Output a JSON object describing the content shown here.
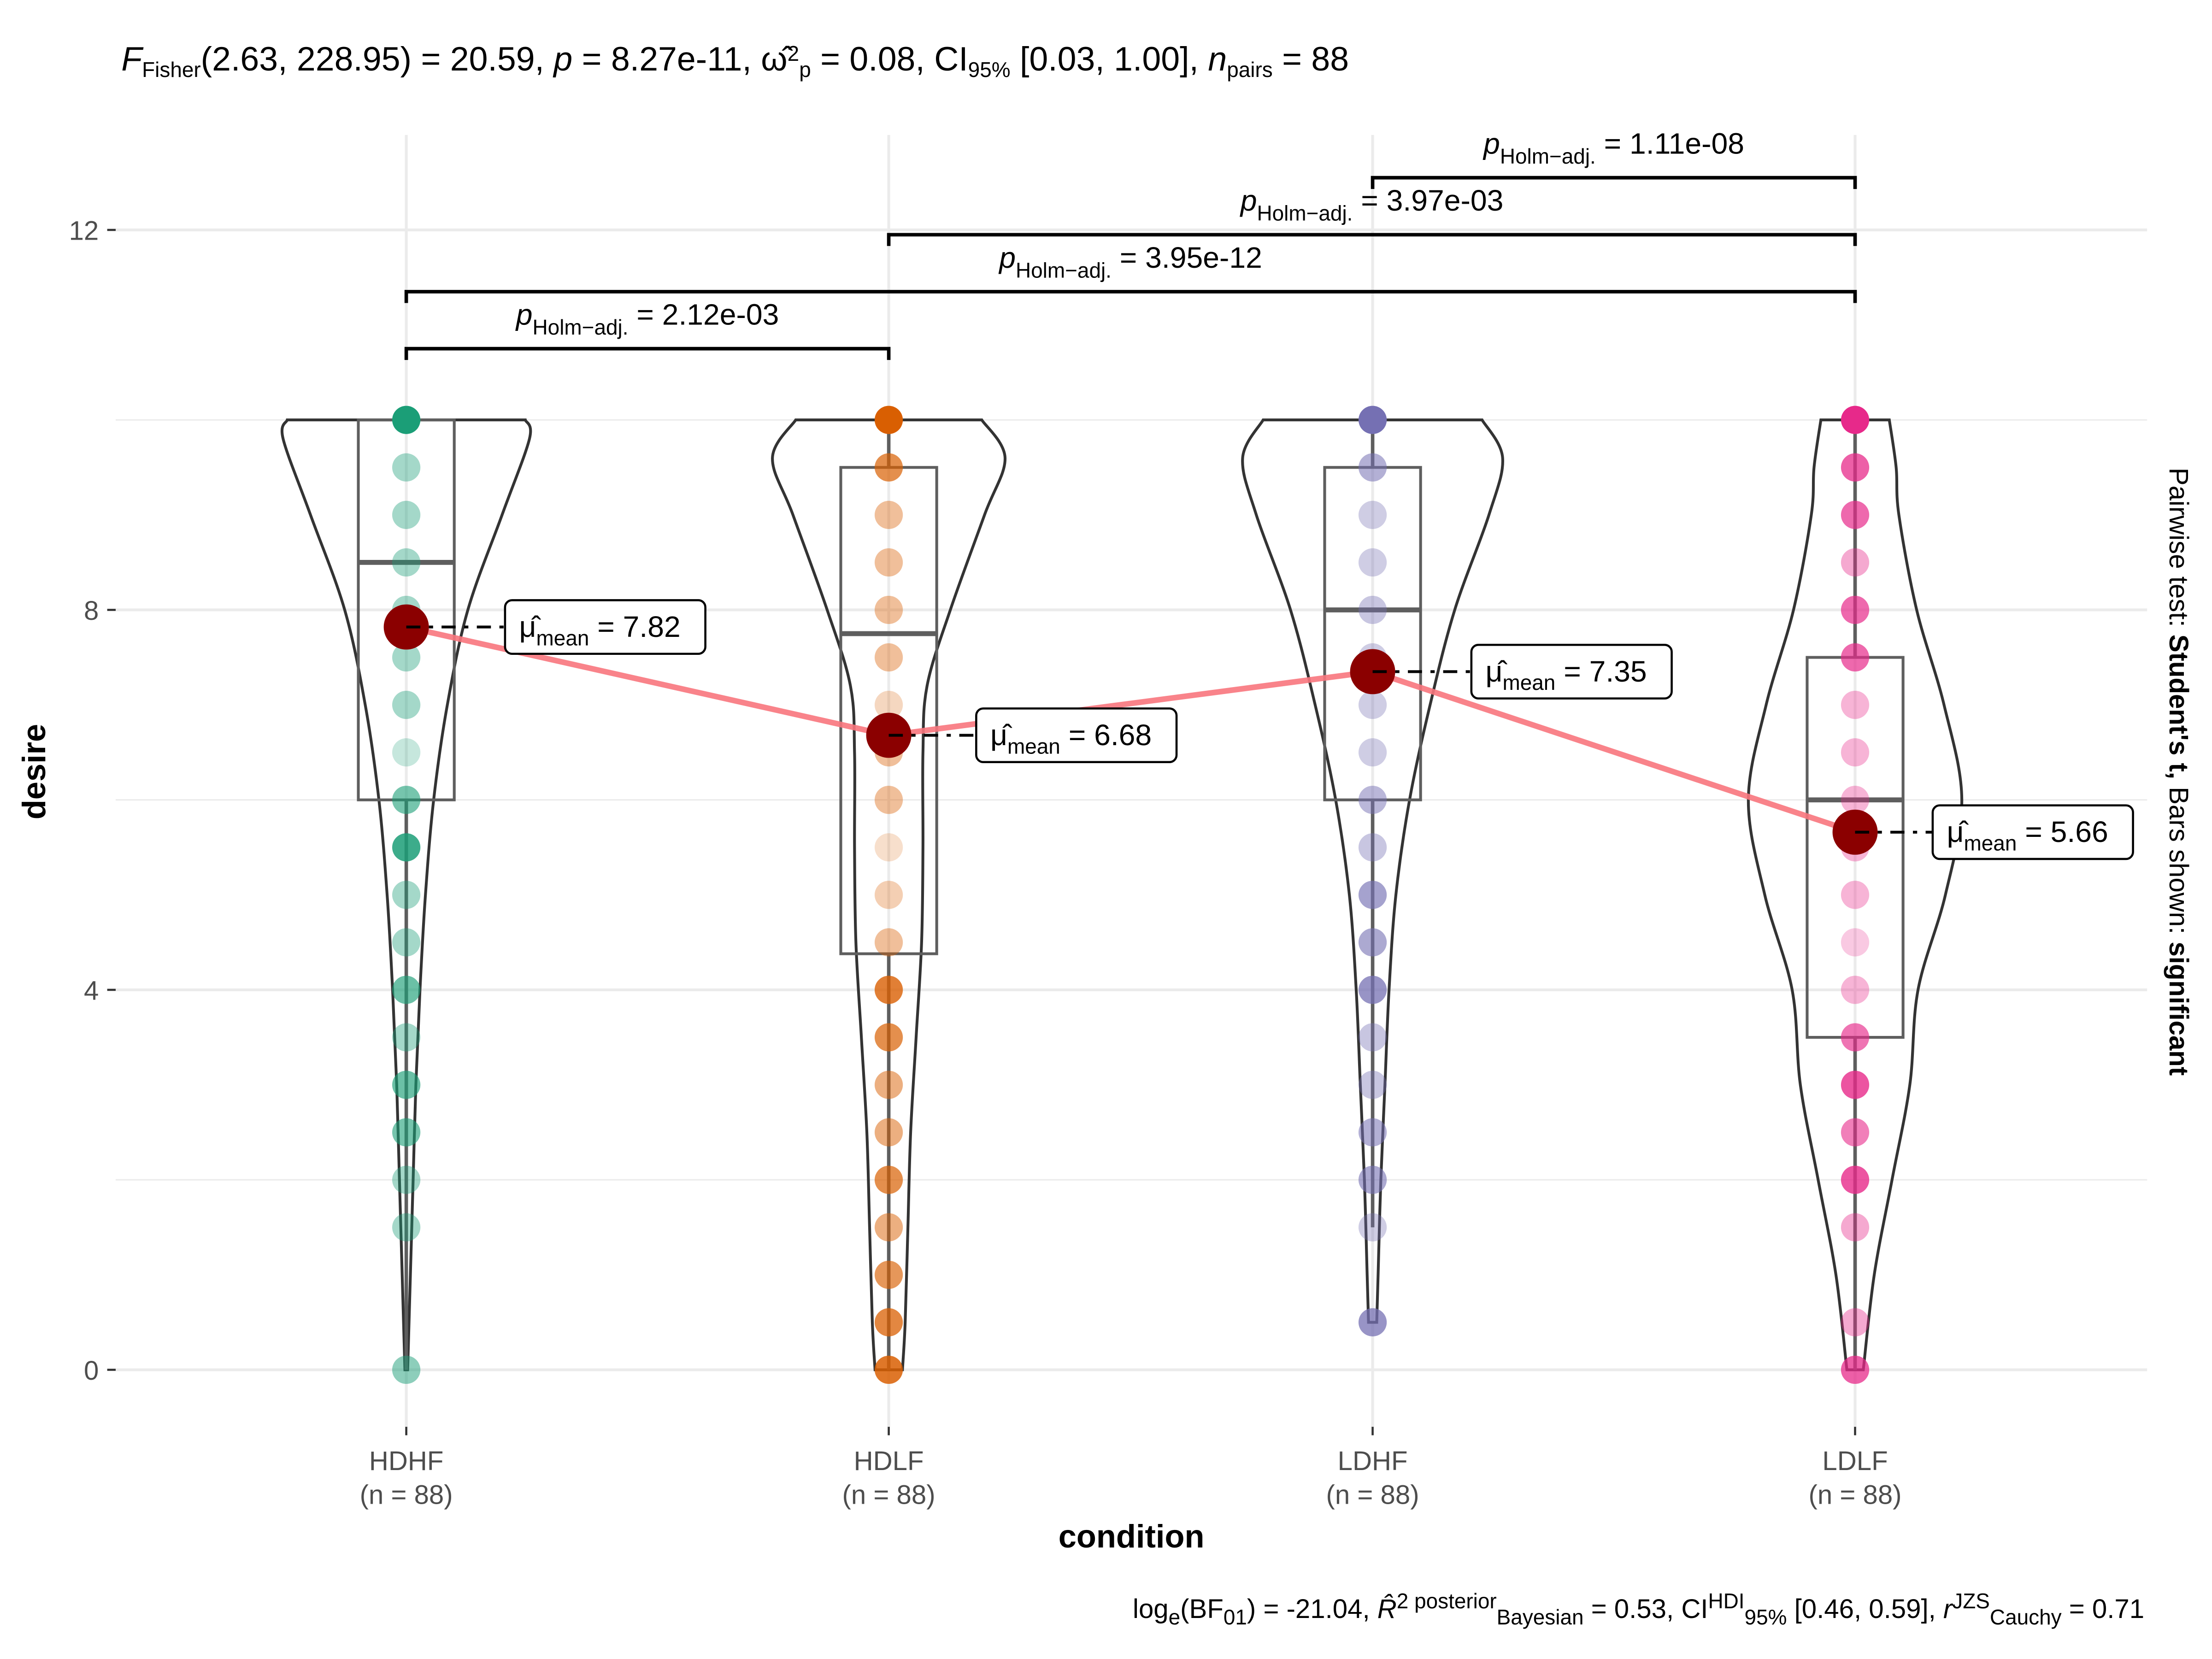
{
  "chart_data": {
    "type": "violin",
    "title": {
      "parts": [
        {
          "t": "F",
          "style": "italic"
        },
        {
          "t": "Fisher",
          "style": "sub"
        },
        {
          "t": "(2.63, 228.95) = 20.59, "
        },
        {
          "t": "p",
          "style": "italic"
        },
        {
          "t": " = 8.27e-11, "
        },
        {
          "t": "ω̂",
          "style": "plain"
        },
        {
          "t": "2",
          "style": "sup"
        },
        {
          "t": "p",
          "style": "sub"
        },
        {
          "t": " = 0.08, CI"
        },
        {
          "t": "95%",
          "style": "sub"
        },
        {
          "t": " [0.03, 1.00], "
        },
        {
          "t": "n",
          "style": "italic"
        },
        {
          "t": "pairs",
          "style": "sub"
        },
        {
          "t": " = 88"
        }
      ]
    },
    "caption": {
      "parts": [
        {
          "t": "log"
        },
        {
          "t": "e",
          "style": "sub"
        },
        {
          "t": "(BF"
        },
        {
          "t": "01",
          "style": "sub"
        },
        {
          "t": ") = -21.04, "
        },
        {
          "t": "R̂",
          "style": "italic"
        },
        {
          "t": "2 posterior",
          "style": "sup"
        },
        {
          "t": "Bayesian",
          "style": "sub"
        },
        {
          "t": " = 0.53, CI"
        },
        {
          "t": "HDI",
          "style": "sup"
        },
        {
          "t": "95%",
          "style": "sub"
        },
        {
          "t": " [0.46, 0.59], "
        },
        {
          "t": "r",
          "style": "italic"
        },
        {
          "t": "JZS",
          "style": "sup"
        },
        {
          "t": "Cauchy",
          "style": "sub"
        },
        {
          "t": " = 0.71"
        }
      ]
    },
    "right_caption": {
      "prefix": "Pairwise test: ",
      "test": "Student's t,",
      "middle": " Bars shown: ",
      "shown": "significant"
    },
    "xlabel": "condition",
    "ylabel": "desire",
    "ylim": [
      -0.6,
      13.0
    ],
    "yticks": [
      0,
      4,
      8,
      12
    ],
    "ygrid_minor": [
      2,
      6,
      10
    ],
    "grid": true,
    "categories": [
      "HDHF",
      "HDLF",
      "LDHF",
      "LDLF"
    ],
    "category_n_labels": [
      "(n = 88)",
      "(n = 88)",
      "(n = 88)",
      "(n = 88)"
    ],
    "colors": [
      "#1B9E77",
      "#D95F02",
      "#7570B3",
      "#E7298A"
    ],
    "mean_color": "#8B0000",
    "mean_line_color": "#F8767D",
    "groups": [
      {
        "name": "HDHF",
        "points": [
          10,
          9.5,
          9,
          8.5,
          8,
          7.5,
          7,
          6.5,
          6,
          5.5,
          5,
          4.5,
          4,
          3.5,
          3,
          2.5,
          2,
          1.5,
          0
        ],
        "point_density": [
          1.0,
          0.4,
          0.4,
          0.4,
          0.4,
          0.4,
          0.4,
          0.25,
          0.6,
          0.85,
          0.4,
          0.4,
          0.65,
          0.4,
          0.65,
          0.6,
          0.4,
          0.4,
          0.5
        ],
        "box": {
          "q1": 6.0,
          "median": 8.5,
          "q3": 10.0,
          "whisker_low": 0.0,
          "whisker_high": 10.0
        },
        "mean": 7.82,
        "mean_label": "= 7.82",
        "violin_halfwidth": [
          [
            10,
            0.87
          ],
          [
            9.8,
            0.9
          ],
          [
            9,
            0.7
          ],
          [
            8,
            0.45
          ],
          [
            7,
            0.3
          ],
          [
            6,
            0.2
          ],
          [
            5,
            0.14
          ],
          [
            4,
            0.1
          ],
          [
            3,
            0.07
          ],
          [
            2,
            0.05
          ],
          [
            1,
            0.03
          ],
          [
            0,
            0.01
          ]
        ]
      },
      {
        "name": "HDLF",
        "points": [
          10,
          9.5,
          9,
          8.5,
          8,
          7.5,
          7,
          6.5,
          6,
          5.5,
          5,
          4.5,
          4,
          3.5,
          3,
          2.5,
          2,
          1.5,
          1,
          0.5,
          0
        ],
        "point_density": [
          1.0,
          0.7,
          0.4,
          0.4,
          0.4,
          0.4,
          0.25,
          0.4,
          0.4,
          0.2,
          0.3,
          0.4,
          0.8,
          0.7,
          0.5,
          0.5,
          0.7,
          0.5,
          0.65,
          0.75,
          0.85
        ],
        "box": {
          "q1": 4.38,
          "median": 7.75,
          "q3": 9.5,
          "whisker_low": 0.0,
          "whisker_high": 10.0
        },
        "mean": 6.68,
        "mean_label": "= 6.68",
        "violin_halfwidth": [
          [
            10,
            0.68
          ],
          [
            9.6,
            0.85
          ],
          [
            9,
            0.7
          ],
          [
            8,
            0.45
          ],
          [
            7.2,
            0.28
          ],
          [
            6.5,
            0.25
          ],
          [
            5.5,
            0.25
          ],
          [
            4.5,
            0.24
          ],
          [
            3.5,
            0.2
          ],
          [
            2.5,
            0.16
          ],
          [
            1.5,
            0.14
          ],
          [
            0.5,
            0.12
          ],
          [
            0,
            0.1
          ]
        ]
      },
      {
        "name": "LDHF",
        "points": [
          10,
          9.5,
          9,
          8.5,
          8,
          7.5,
          7,
          6.5,
          6,
          5.5,
          5,
          4.5,
          4,
          3.5,
          3,
          2.5,
          2,
          1.5,
          0.5
        ],
        "point_density": [
          1.0,
          0.55,
          0.35,
          0.35,
          0.4,
          0.35,
          0.35,
          0.35,
          0.5,
          0.4,
          0.65,
          0.6,
          0.75,
          0.4,
          0.4,
          0.55,
          0.6,
          0.35,
          0.75
        ],
        "box": {
          "q1": 6.0,
          "median": 8.0,
          "q3": 9.5,
          "whisker_low": 1.5,
          "whisker_high": 10.0
        },
        "mean": 7.35,
        "mean_label": "= 7.35",
        "violin_halfwidth": [
          [
            10,
            0.8
          ],
          [
            9.6,
            0.95
          ],
          [
            9,
            0.85
          ],
          [
            8,
            0.6
          ],
          [
            7,
            0.42
          ],
          [
            6,
            0.27
          ],
          [
            5,
            0.17
          ],
          [
            4,
            0.12
          ],
          [
            3,
            0.09
          ],
          [
            2,
            0.06
          ],
          [
            1,
            0.04
          ],
          [
            0.5,
            0.03
          ]
        ]
      },
      {
        "name": "LDLF",
        "points": [
          10,
          9.5,
          9,
          8.5,
          8,
          7.5,
          7,
          6.5,
          6,
          5.5,
          5,
          4.5,
          4,
          3.5,
          3,
          2.5,
          2,
          1.5,
          0.5,
          0
        ],
        "point_density": [
          1.0,
          0.75,
          0.7,
          0.4,
          0.7,
          0.7,
          0.35,
          0.35,
          0.35,
          0.35,
          0.35,
          0.25,
          0.35,
          0.65,
          0.8,
          0.6,
          0.8,
          0.4,
          0.4,
          0.75
        ],
        "box": {
          "q1": 3.5,
          "median": 6.0,
          "q3": 7.5,
          "whisker_low": 0.0,
          "whisker_high": 10.0
        },
        "mean": 5.66,
        "mean_label": "= 5.66",
        "violin_halfwidth": [
          [
            10,
            0.25
          ],
          [
            9.5,
            0.3
          ],
          [
            9,
            0.32
          ],
          [
            8,
            0.45
          ],
          [
            7,
            0.65
          ],
          [
            6,
            0.78
          ],
          [
            5,
            0.66
          ],
          [
            4,
            0.46
          ],
          [
            3,
            0.4
          ],
          [
            2,
            0.27
          ],
          [
            1,
            0.14
          ],
          [
            0,
            0.06
          ]
        ]
      }
    ],
    "mean_symbol": "μ̂",
    "mean_symbol_sub": "mean",
    "pairwise": [
      {
        "from": "HDHF",
        "to": "HDLF",
        "y": 10.75,
        "label_prefix": "p",
        "label_sub": "Holm−adj.",
        "label_value": "= 2.12e-03"
      },
      {
        "from": "HDHF",
        "to": "LDLF",
        "y": 11.35,
        "label_prefix": "p",
        "label_sub": "Holm−adj.",
        "label_value": "= 3.95e-12"
      },
      {
        "from": "HDLF",
        "to": "LDLF",
        "y": 11.95,
        "label_prefix": "p",
        "label_sub": "Holm−adj.",
        "label_value": "= 3.97e-03"
      },
      {
        "from": "LDHF",
        "to": "LDLF",
        "y": 12.55,
        "label_prefix": "p",
        "label_sub": "Holm−adj.",
        "label_value": "= 1.11e-08"
      }
    ]
  }
}
